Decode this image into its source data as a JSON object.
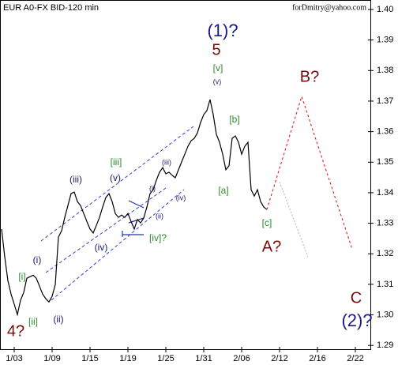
{
  "chart_data": {
    "type": "line",
    "title": "EUR A0-FX BID-120 min",
    "subtitle": "forDmitry@yahoo.com",
    "categories": [
      null,
      null,
      null,
      null,
      "1/03",
      null,
      null,
      null,
      null,
      null,
      null,
      null,
      null,
      null,
      null,
      null,
      "1/09",
      null,
      null,
      null,
      null,
      null,
      null,
      null,
      null,
      null,
      null,
      null,
      "1/15",
      null,
      null,
      null,
      null,
      null,
      null,
      null,
      null,
      null,
      null,
      null,
      "1/19",
      null,
      null,
      null,
      null,
      null,
      null,
      null,
      null,
      null,
      null,
      null,
      "1/25",
      null,
      null,
      null,
      null,
      null,
      null,
      null,
      null,
      null,
      null,
      null,
      "1/31",
      null,
      null,
      null,
      null,
      null,
      null,
      null,
      null,
      null,
      null,
      null,
      "2/06",
      null,
      null,
      null,
      null,
      null,
      null,
      null,
      null,
      null,
      null,
      null,
      "2/12",
      null,
      null,
      null,
      null,
      null,
      null,
      null,
      null,
      null,
      null,
      null,
      "2/16",
      null,
      null,
      null,
      null,
      null,
      null,
      null,
      null,
      null,
      null,
      null,
      "2/22",
      null,
      null,
      null,
      null
    ],
    "series": [
      {
        "name": "EUR",
        "color": "#000000",
        "style": "solid",
        "values": [
          1.3281,
          1.319,
          1.3112,
          1.3068,
          1.3035,
          1.3001,
          1.3048,
          1.3073,
          1.312,
          1.3125,
          1.313,
          1.312,
          1.3094,
          1.3068,
          1.3053,
          1.3042,
          1.3061,
          1.3099,
          1.3255,
          1.3275,
          1.3319,
          1.3358,
          1.3397,
          1.3402,
          1.3371,
          1.3358,
          1.3332,
          1.3306,
          1.3281,
          1.3268,
          1.3293,
          1.3319,
          1.3353,
          1.3384,
          1.3397,
          1.3371,
          1.3332,
          1.3319,
          1.3327,
          1.3319,
          1.3332,
          1.3306,
          1.3281,
          1.3312,
          1.3301,
          1.3317,
          1.3353,
          1.3397,
          1.341,
          1.3441,
          1.3467,
          1.3482,
          1.3462,
          1.3467,
          1.3457,
          1.3449,
          1.3475,
          1.3501,
          1.3526,
          1.3552,
          1.357,
          1.3578,
          1.3596,
          1.363,
          1.3656,
          1.3669,
          1.3705,
          1.3656,
          1.3591,
          1.3565,
          1.3526,
          1.3475,
          1.3488,
          1.3578,
          1.3586,
          1.3565,
          1.3526,
          1.3552,
          1.3565,
          1.341,
          1.3389,
          1.341,
          1.3371,
          1.3353,
          1.3345,
          null,
          null,
          null,
          null,
          null,
          null,
          null,
          null,
          null,
          null,
          null,
          null,
          null,
          null,
          null,
          null,
          null,
          null,
          null,
          null,
          null,
          null,
          null,
          null,
          null,
          null,
          null,
          null,
          null,
          null,
          null,
          null
        ]
      },
      {
        "name": "B?",
        "color": "#dd2222",
        "style": "dashed",
        "values": [
          null,
          null,
          null,
          null,
          null,
          null,
          null,
          null,
          null,
          null,
          null,
          null,
          null,
          null,
          null,
          null,
          null,
          null,
          null,
          null,
          null,
          null,
          null,
          null,
          null,
          null,
          null,
          null,
          null,
          null,
          null,
          null,
          null,
          null,
          null,
          null,
          null,
          null,
          null,
          null,
          null,
          null,
          null,
          null,
          null,
          null,
          null,
          null,
          null,
          null,
          null,
          null,
          null,
          null,
          null,
          null,
          null,
          null,
          null,
          null,
          null,
          null,
          null,
          null,
          null,
          null,
          null,
          null,
          null,
          null,
          null,
          null,
          null,
          null,
          null,
          null,
          null,
          null,
          null,
          null,
          null,
          null,
          null,
          null,
          1.3345,
          1.3379,
          1.3412,
          1.3446,
          1.348,
          1.3513,
          1.3547,
          1.358,
          1.3614,
          1.3648,
          1.3681,
          1.3715,
          1.3684,
          1.3653,
          1.3621,
          1.359,
          1.3559,
          1.3528,
          1.3496,
          1.3465,
          1.3434,
          1.3403,
          1.3371,
          1.334,
          1.3309,
          1.3278,
          1.3246,
          1.3215,
          null,
          null,
          null,
          null,
          null
        ]
      },
      {
        "name": "A?",
        "color": "#bbbbbb",
        "style": "dotted",
        "values": [
          null,
          null,
          null,
          null,
          null,
          null,
          null,
          null,
          null,
          null,
          null,
          null,
          null,
          null,
          null,
          null,
          null,
          null,
          null,
          null,
          null,
          null,
          null,
          null,
          null,
          null,
          null,
          null,
          null,
          null,
          null,
          null,
          null,
          null,
          null,
          null,
          null,
          null,
          null,
          null,
          null,
          null,
          null,
          null,
          null,
          null,
          null,
          null,
          null,
          null,
          null,
          null,
          null,
          null,
          null,
          null,
          null,
          null,
          null,
          null,
          null,
          null,
          null,
          null,
          null,
          null,
          null,
          null,
          null,
          null,
          null,
          null,
          null,
          null,
          null,
          null,
          null,
          null,
          null,
          null,
          null,
          null,
          null,
          null,
          null,
          null,
          null,
          null,
          1.3435,
          1.3408,
          1.3381,
          1.3353,
          1.3326,
          1.3299,
          1.3272,
          1.3245,
          1.3217,
          1.319,
          null,
          null,
          null,
          null,
          null,
          null,
          null,
          null,
          null,
          null,
          null,
          null,
          null,
          null,
          null,
          null,
          null,
          null,
          null
        ]
      }
    ],
    "ylim": [
      1.2885,
      1.4031
    ],
    "yticks": [
      1.29,
      {
        "value": 1.3,
        "label": "1.30"
      },
      1.31,
      1.32,
      1.33,
      1.34,
      1.35,
      1.36,
      1.37,
      1.38,
      1.39,
      {
        "value": 1.4,
        "label": "1.40"
      }
    ],
    "legend": false,
    "annotations": [
      {
        "text": "4?",
        "color": "#7a0a0a"
      },
      {
        "text": "[ii]",
        "color": "#2e8b2e"
      },
      {
        "text": "(ii)",
        "color": "#1a1a5e"
      },
      {
        "text": "[i]",
        "color": "#2e8b2e"
      },
      {
        "text": "(i)",
        "color": "#1a1a5e"
      },
      {
        "text": "(iii)",
        "color": "#1a1a5e"
      },
      {
        "text": "[iii]",
        "color": "#2e8b2e"
      },
      {
        "text": "(v)",
        "color": "#1a1a5e"
      },
      {
        "text": "(iv)",
        "color": "#1a1a5e"
      },
      {
        "text": "[iv]?",
        "color": "#2e8b2e"
      },
      {
        "text": "(ii)",
        "color": "#1a1a5e"
      },
      {
        "text": "(i)",
        "color": "#1a1a5e"
      },
      {
        "text": "(iii)",
        "color": "#1a1a5e"
      },
      {
        "text": "(iv)",
        "color": "#1a1a5e"
      },
      {
        "text": "(v)",
        "color": "#1a1a5e"
      },
      {
        "text": "[v]",
        "color": "#2e8b2e"
      },
      {
        "text": "5",
        "color": "#7a0a0a"
      },
      {
        "text": "(1)?",
        "color": "#1a1a8e"
      },
      {
        "text": "[b]",
        "color": "#2e8b2e"
      },
      {
        "text": "[a]",
        "color": "#2e8b2e"
      },
      {
        "text": "[c]",
        "color": "#2e8b2e"
      },
      {
        "text": "A?",
        "color": "#7a0a0a"
      },
      {
        "text": "B?",
        "color": "#7a0a0a"
      },
      {
        "text": "C",
        "color": "#7a0a0a"
      },
      {
        "text": "(2)?",
        "color": "#1a1a8e"
      }
    ]
  }
}
